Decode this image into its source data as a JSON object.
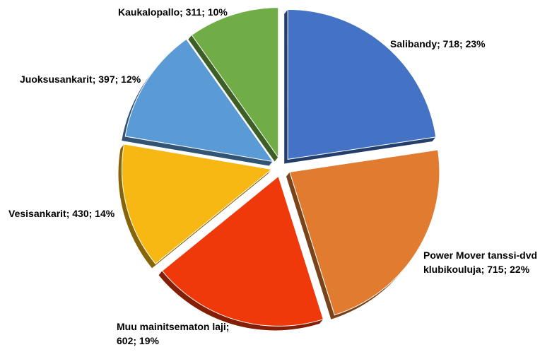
{
  "chart_data": {
    "type": "pie",
    "title": "",
    "slices": [
      {
        "label": "Salibandy",
        "value": 718,
        "percent": "23%",
        "label_lines": [
          "Salibandy; 718; 23%"
        ],
        "color": "#4472C4"
      },
      {
        "label": "Power Mover tanssi-dvd klubikouluja",
        "value": 715,
        "percent": "22%",
        "label_lines": [
          "Power Mover tanssi-dvd",
          "klubikouluja; 715; 22%"
        ],
        "color": "#E07B30"
      },
      {
        "label": "Muu mainitsematon laji",
        "value": 602,
        "percent": "19%",
        "label_lines": [
          "Muu mainitsematon laji;",
          "602; 19%"
        ],
        "color": "#F0390A"
      },
      {
        "label": "Vesisankarit",
        "value": 430,
        "percent": "14%",
        "label_lines": [
          "Vesisankarit; 430; 14%"
        ],
        "color": "#F7B813"
      },
      {
        "label": "Juoksusankarit",
        "value": 397,
        "percent": "12%",
        "label_lines": [
          "Juoksusankarit; 397; 12%"
        ],
        "color": "#5B9BD5"
      },
      {
        "label": "Kaukalopallo",
        "value": 311,
        "percent": "10%",
        "label_lines": [
          "Kaukalopallo; 311; 10%"
        ],
        "color": "#70AD47"
      }
    ],
    "start_angle_deg": 0,
    "direction": "clockwise",
    "style": "3d-exploded",
    "legend": "none"
  }
}
